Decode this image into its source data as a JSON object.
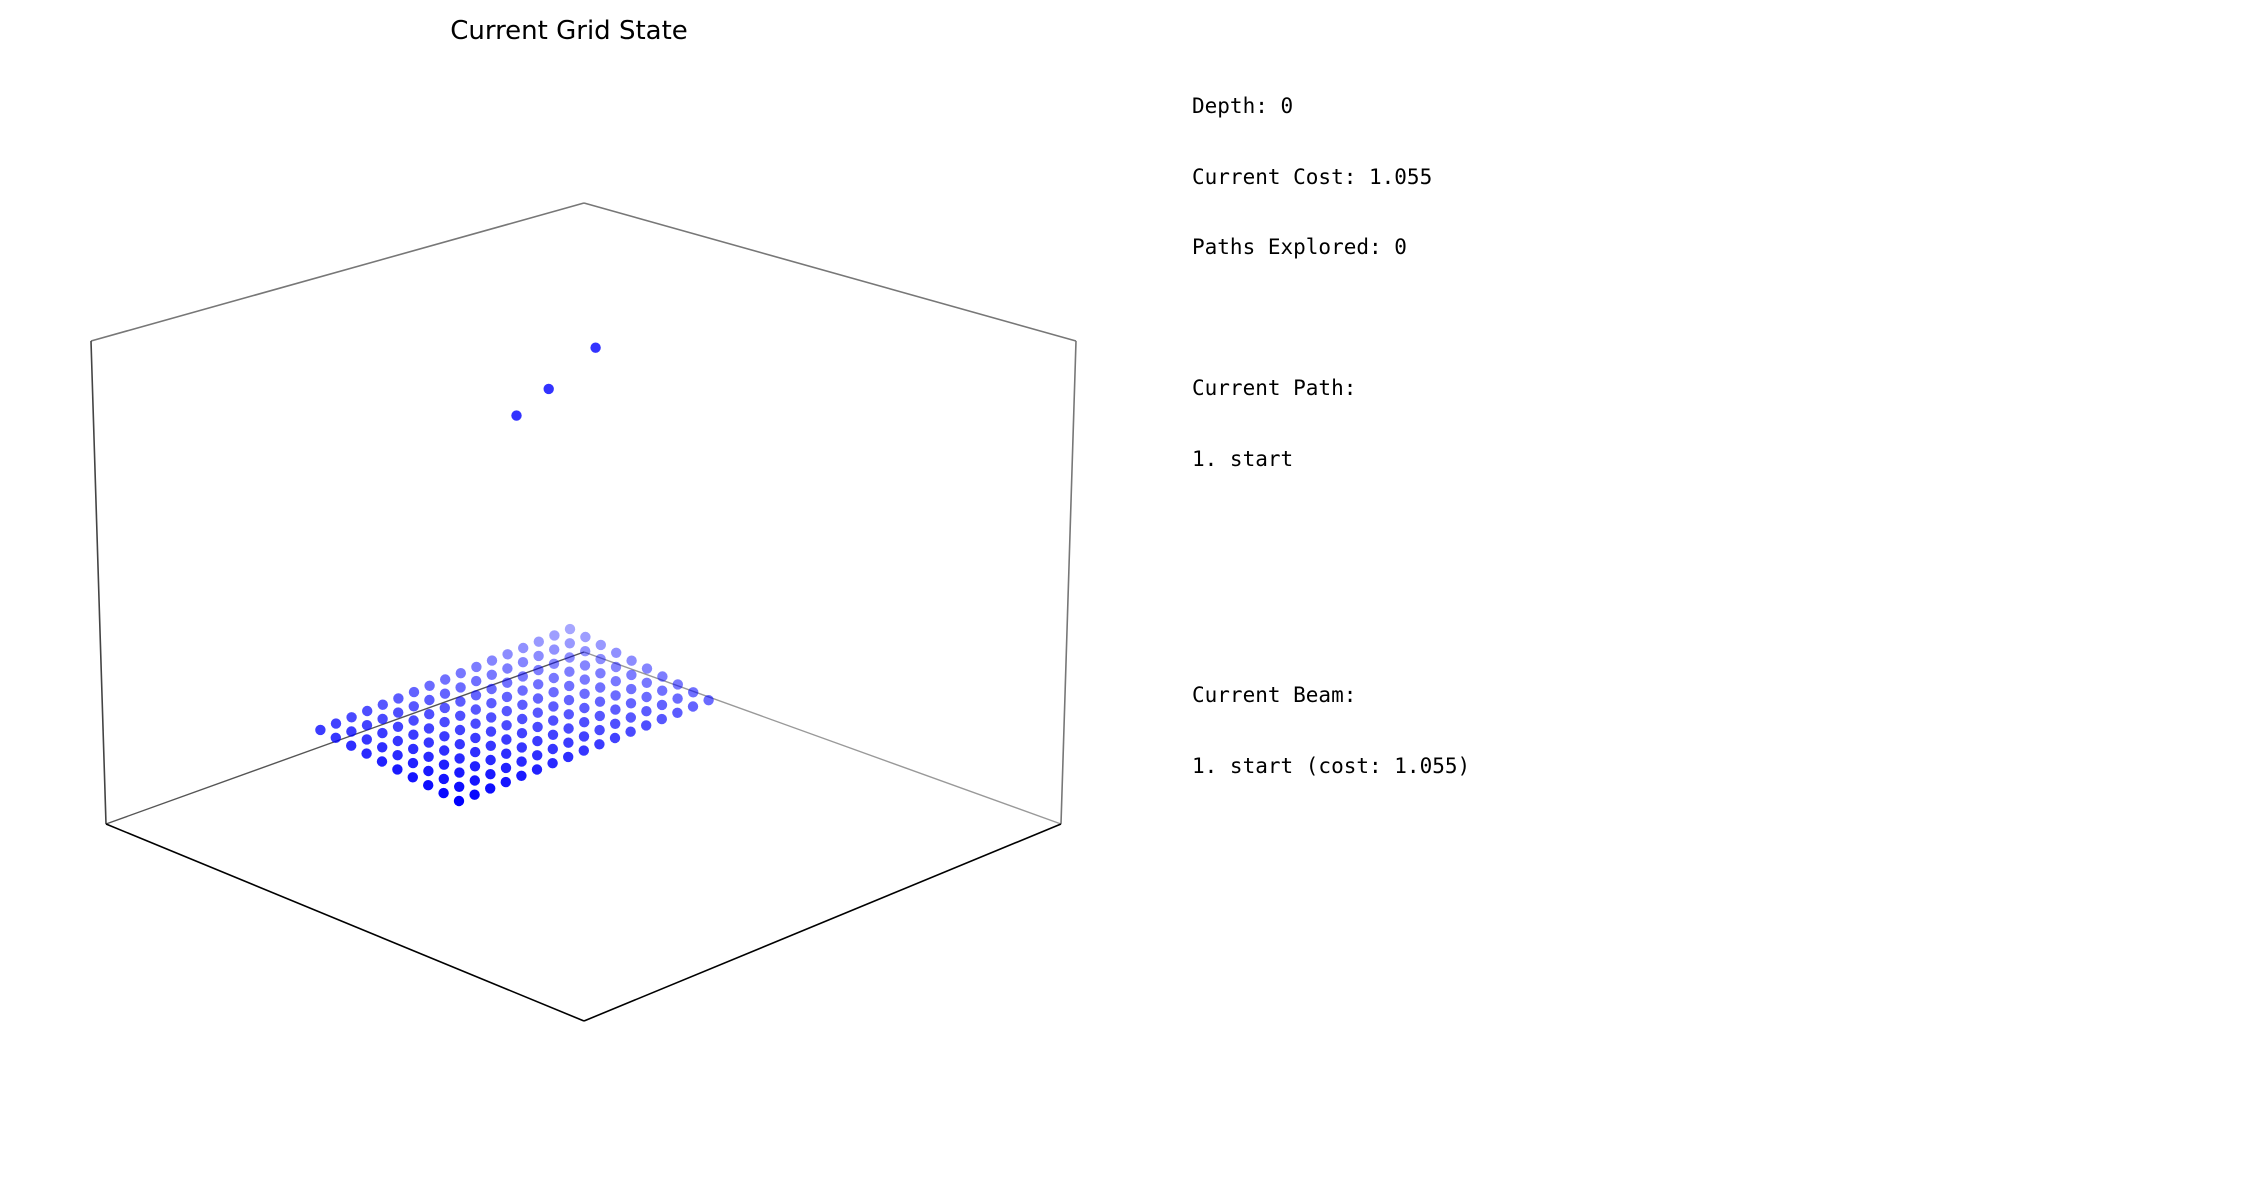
{
  "chart_data": {
    "type": "scatter",
    "title": "Current Grid State",
    "dimensions": 3,
    "grid_lines": false,
    "series": [
      {
        "color": "#0000ff",
        "grid_points": {
          "nx": 10,
          "ny": 17,
          "z": 0
        },
        "raised_points": [
          {
            "x": 1,
            "y": 5,
            "z": 8.5
          },
          {
            "x": 4,
            "y": 10,
            "z": 7.8
          },
          {
            "x": 5,
            "y": 14,
            "z": 8.0
          }
        ]
      }
    ]
  },
  "stats": {
    "depth": "Depth: 0",
    "cost": "Current Cost: 1.055",
    "paths": "Paths Explored: 0",
    "path_header": "Current Path:",
    "path_items": [
      "1. start"
    ]
  },
  "beam": {
    "header": "Current Beam:",
    "items": [
      "1. start (cost: 1.055)"
    ]
  }
}
